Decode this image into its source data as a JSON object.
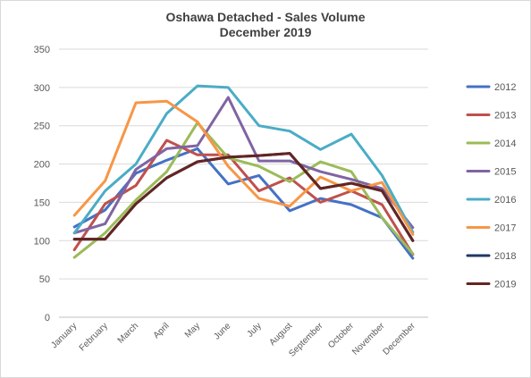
{
  "chart_data": {
    "type": "line",
    "title": "Oshawa Detached - Sales Volume",
    "subtitle": "December 2019",
    "xlabel": "",
    "ylabel": "",
    "categories": [
      "January",
      "February",
      "March",
      "April",
      "May",
      "June",
      "July",
      "August",
      "September",
      "October",
      "November",
      "December"
    ],
    "ylim": [
      0,
      350
    ],
    "yticks": [
      0,
      50,
      100,
      150,
      200,
      250,
      300,
      350
    ],
    "grid": true,
    "legend_position": "right",
    "series": [
      {
        "name": "2012",
        "color": "#4472c4",
        "values": [
          118,
          140,
          188,
          205,
          220,
          174,
          185,
          139,
          155,
          147,
          130,
          77
        ]
      },
      {
        "name": "2013",
        "color": "#c0504d",
        "values": [
          88,
          148,
          172,
          231,
          212,
          212,
          165,
          182,
          150,
          165,
          147,
          82
        ]
      },
      {
        "name": "2014",
        "color": "#9bbb59",
        "values": [
          78,
          110,
          153,
          190,
          254,
          208,
          197,
          177,
          203,
          190,
          130,
          83
        ]
      },
      {
        "name": "2015",
        "color": "#8064a2",
        "values": [
          110,
          122,
          193,
          220,
          224,
          287,
          204,
          204,
          190,
          180,
          168,
          117
        ]
      },
      {
        "name": "2016",
        "color": "#4bacc6",
        "values": [
          110,
          165,
          200,
          266,
          302,
          300,
          250,
          243,
          219,
          239,
          185,
          111
        ]
      },
      {
        "name": "2017",
        "color": "#f79646",
        "values": [
          133,
          178,
          280,
          282,
          255,
          197,
          155,
          145,
          183,
          165,
          176,
          108
        ]
      },
      {
        "name": "2018",
        "color": "#1f3864",
        "values": [
          102,
          102,
          148,
          182,
          203,
          209,
          211,
          214,
          168,
          175,
          165,
          100
        ]
      },
      {
        "name": "2019",
        "color": "#632523",
        "values": [
          102,
          102,
          148,
          182,
          203,
          209,
          211,
          214,
          168,
          175,
          165,
          100
        ]
      }
    ]
  }
}
